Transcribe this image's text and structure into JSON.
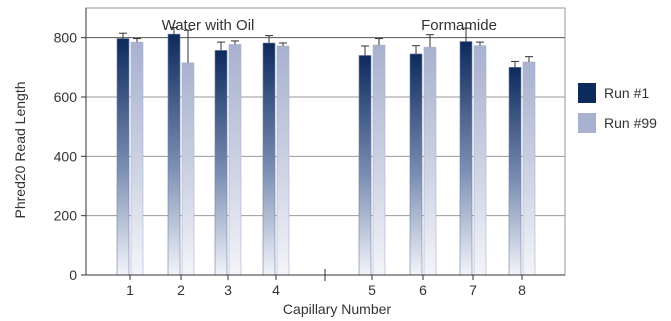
{
  "chart_data": {
    "type": "bar",
    "title": "",
    "xlabel": "Capillary Number",
    "ylabel": "Phred20 Read Length",
    "ylim": [
      0,
      900
    ],
    "yticks": [
      0,
      200,
      400,
      600,
      800
    ],
    "grid": true,
    "legend_position": "right",
    "categories": [
      "1",
      "2",
      "3",
      "4",
      "5",
      "6",
      "7",
      "8"
    ],
    "group_labels": [
      "Water with Oil",
      "Formamide"
    ],
    "series": [
      {
        "name": "Run #1",
        "color": "#0d2a5c",
        "values": [
          797,
          812,
          757,
          782,
          740,
          745,
          787,
          700
        ],
        "error": [
          18,
          22,
          28,
          25,
          32,
          28,
          45,
          20
        ]
      },
      {
        "name": "Run #99",
        "color": "#a8b1cf",
        "values": [
          785,
          715,
          777,
          772,
          775,
          768,
          773,
          718
        ],
        "error": [
          12,
          110,
          12,
          10,
          22,
          42,
          12,
          18
        ]
      }
    ]
  }
}
